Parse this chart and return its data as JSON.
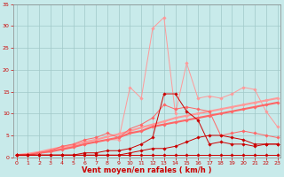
{
  "x": [
    0,
    1,
    2,
    3,
    4,
    5,
    6,
    7,
    8,
    9,
    10,
    11,
    12,
    13,
    14,
    15,
    16,
    17,
    18,
    19,
    20,
    21,
    22,
    23
  ],
  "series": [
    {
      "name": "light_pink_peak",
      "color": "#ff9999",
      "linewidth": 0.7,
      "marker": "D",
      "markersize": 1.8,
      "y": [
        0.5,
        0.5,
        1.0,
        1.5,
        2.0,
        2.5,
        3.0,
        3.5,
        4.0,
        4.0,
        16.0,
        13.5,
        29.5,
        32.0,
        10.0,
        21.5,
        13.5,
        14.0,
        13.5,
        14.5,
        16.0,
        15.5,
        10.5,
        7.0
      ]
    },
    {
      "name": "medium_pink_linear",
      "color": "#ff9999",
      "linewidth": 1.5,
      "marker": "D",
      "markersize": 1.8,
      "y": [
        0.5,
        0.8,
        1.2,
        1.8,
        2.3,
        2.8,
        3.5,
        4.0,
        4.7,
        5.3,
        6.0,
        6.8,
        7.5,
        8.2,
        9.0,
        9.5,
        10.0,
        10.5,
        11.0,
        11.5,
        12.0,
        12.5,
        13.0,
        13.5
      ]
    },
    {
      "name": "pink_linear2",
      "color": "#ff6666",
      "linewidth": 1.5,
      "marker": "D",
      "markersize": 1.8,
      "y": [
        0.5,
        0.5,
        1.0,
        1.3,
        1.8,
        2.3,
        3.0,
        3.5,
        4.0,
        4.5,
        5.5,
        6.0,
        7.0,
        7.5,
        8.0,
        8.5,
        9.0,
        9.5,
        10.0,
        10.5,
        11.0,
        11.5,
        12.0,
        12.5
      ]
    },
    {
      "name": "medium_pink_wavy",
      "color": "#ff6666",
      "linewidth": 0.7,
      "marker": "D",
      "markersize": 1.8,
      "y": [
        0.5,
        0.5,
        1.0,
        1.5,
        2.5,
        3.0,
        4.0,
        4.5,
        5.5,
        4.5,
        6.5,
        7.5,
        9.0,
        12.0,
        11.0,
        11.5,
        11.0,
        10.5,
        5.0,
        5.5,
        6.0,
        5.5,
        5.0,
        4.5
      ]
    },
    {
      "name": "dark_red_peak",
      "color": "#cc0000",
      "linewidth": 0.7,
      "marker": "D",
      "markersize": 1.8,
      "y": [
        0.5,
        0.5,
        0.5,
        0.5,
        0.5,
        0.5,
        1.0,
        1.0,
        1.5,
        1.5,
        2.0,
        3.0,
        4.5,
        14.5,
        14.5,
        10.5,
        8.5,
        3.0,
        3.5,
        3.0,
        3.0,
        2.5,
        3.0,
        3.0
      ]
    },
    {
      "name": "dark_red_flat",
      "color": "#cc0000",
      "linewidth": 0.7,
      "marker": "D",
      "markersize": 1.8,
      "y": [
        0.5,
        0.5,
        0.5,
        0.5,
        0.5,
        0.5,
        0.5,
        0.5,
        0.5,
        0.5,
        1.0,
        1.5,
        2.0,
        2.0,
        2.5,
        3.5,
        4.5,
        5.0,
        5.0,
        4.5,
        4.0,
        3.0,
        3.0,
        3.0
      ]
    },
    {
      "name": "dark_red_bottom",
      "color": "#cc0000",
      "linewidth": 0.7,
      "marker": "D",
      "markersize": 1.8,
      "y": [
        0.5,
        0.5,
        0.5,
        0.5,
        0.5,
        0.5,
        0.5,
        0.5,
        0.5,
        0.5,
        0.5,
        0.5,
        0.5,
        0.5,
        0.5,
        0.5,
        0.5,
        0.5,
        0.5,
        0.5,
        0.5,
        0.5,
        0.5,
        0.5
      ]
    }
  ],
  "xlim": [
    -0.3,
    23.3
  ],
  "ylim": [
    0,
    35
  ],
  "yticks": [
    0,
    5,
    10,
    15,
    20,
    25,
    30,
    35
  ],
  "xticks": [
    0,
    1,
    2,
    3,
    4,
    5,
    6,
    7,
    8,
    9,
    10,
    11,
    12,
    13,
    14,
    15,
    16,
    17,
    18,
    19,
    20,
    21,
    22,
    23
  ],
  "xlabel": "Vent moyen/en rafales ( km/h )",
  "xlabel_color": "#cc0000",
  "bg_color": "#c8eaea",
  "grid_color": "#a0c8c8",
  "tick_color": "#cc0000",
  "axis_color": "#888888"
}
